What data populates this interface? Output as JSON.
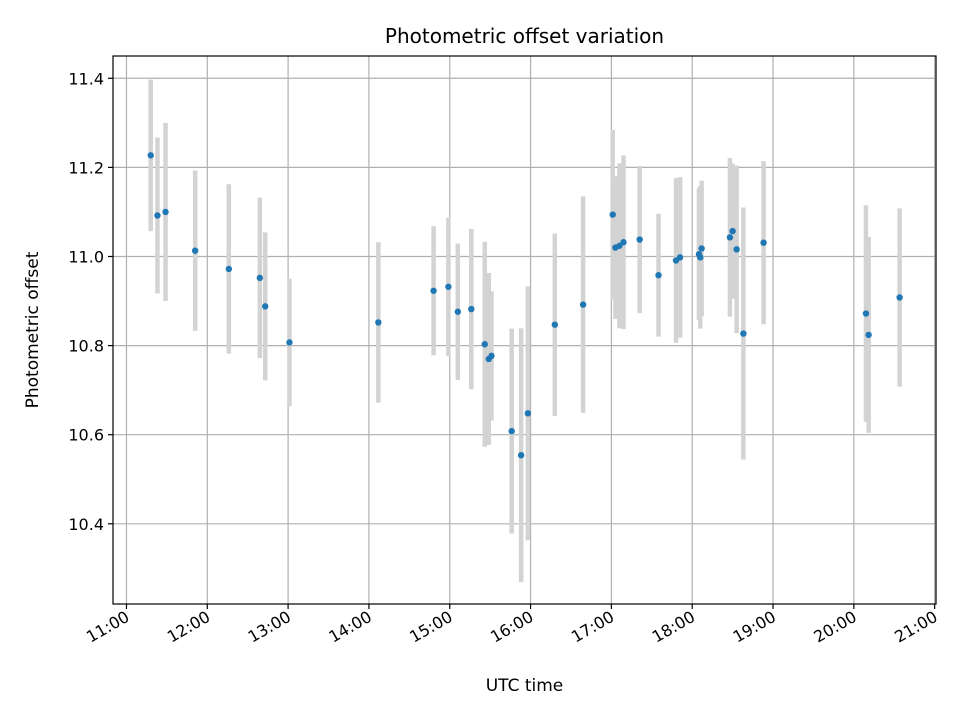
{
  "chart_data": {
    "type": "scatter",
    "title": "Photometric offset variation",
    "xlabel": "UTC time",
    "ylabel": "Photometric offset",
    "x_unit": "hours UTC",
    "xlim": [
      "10:50",
      "21:01"
    ],
    "ylim": [
      10.22,
      11.45
    ],
    "x_ticks": [
      "11:00",
      "12:00",
      "13:00",
      "14:00",
      "15:00",
      "16:00",
      "17:00",
      "18:00",
      "19:00",
      "20:00",
      "21:00"
    ],
    "y_ticks": [
      "10.4",
      "10.6",
      "10.8",
      "11.0",
      "11.2",
      "11.4"
    ],
    "grid": true,
    "colors": {
      "point": "#1f77b4",
      "errorbar": "#d3d3d3",
      "grid": "#b0b0b0",
      "axes": "#000000"
    },
    "points": [
      {
        "x": "11:18",
        "y": 11.227,
        "err": 0.17
      },
      {
        "x": "11:23",
        "y": 11.092,
        "err": 0.175
      },
      {
        "x": "11:29",
        "y": 11.1,
        "err": 0.2
      },
      {
        "x": "11:51",
        "y": 11.013,
        "err": 0.18
      },
      {
        "x": "12:16",
        "y": 10.972,
        "err": 0.19
      },
      {
        "x": "12:39",
        "y": 10.952,
        "err": 0.18
      },
      {
        "x": "12:43",
        "y": 10.888,
        "err": 0.166
      },
      {
        "x": "13:01",
        "y": 10.807,
        "err": 0.143
      },
      {
        "x": "14:07",
        "y": 10.852,
        "err": 0.18
      },
      {
        "x": "14:48",
        "y": 10.923,
        "err": 0.145
      },
      {
        "x": "14:59",
        "y": 10.932,
        "err": 0.155
      },
      {
        "x": "15:06",
        "y": 10.876,
        "err": 0.153
      },
      {
        "x": "15:16",
        "y": 10.882,
        "err": 0.18
      },
      {
        "x": "15:26",
        "y": 10.803,
        "err": 0.23
      },
      {
        "x": "15:29",
        "y": 10.77,
        "err": 0.193
      },
      {
        "x": "15:31",
        "y": 10.777,
        "err": 0.145
      },
      {
        "x": "15:46",
        "y": 10.608,
        "err": 0.23
      },
      {
        "x": "15:53",
        "y": 10.554,
        "err": 0.285
      },
      {
        "x": "15:58",
        "y": 10.648,
        "err": 0.285
      },
      {
        "x": "16:18",
        "y": 10.847,
        "err": 0.205
      },
      {
        "x": "16:39",
        "y": 10.892,
        "err": 0.243
      },
      {
        "x": "17:01",
        "y": 11.094,
        "err": 0.19
      },
      {
        "x": "17:03",
        "y": 11.02,
        "err": 0.16
      },
      {
        "x": "17:06",
        "y": 11.024,
        "err": 0.185
      },
      {
        "x": "17:09",
        "y": 11.032,
        "err": 0.195
      },
      {
        "x": "17:21",
        "y": 11.038,
        "err": 0.165
      },
      {
        "x": "17:35",
        "y": 10.958,
        "err": 0.138
      },
      {
        "x": "17:48",
        "y": 10.991,
        "err": 0.185
      },
      {
        "x": "17:51",
        "y": 10.998,
        "err": 0.18
      },
      {
        "x": "18:05",
        "y": 11.005,
        "err": 0.148
      },
      {
        "x": "18:06",
        "y": 10.998,
        "err": 0.16
      },
      {
        "x": "18:07",
        "y": 11.018,
        "err": 0.152
      },
      {
        "x": "18:28",
        "y": 11.043,
        "err": 0.178
      },
      {
        "x": "18:30",
        "y": 11.057,
        "err": 0.152
      },
      {
        "x": "18:33",
        "y": 11.016,
        "err": 0.188
      },
      {
        "x": "18:38",
        "y": 10.827,
        "err": 0.283
      },
      {
        "x": "18:53",
        "y": 11.031,
        "err": 0.183
      },
      {
        "x": "20:09",
        "y": 10.872,
        "err": 0.243
      },
      {
        "x": "20:11",
        "y": 10.824,
        "err": 0.22
      },
      {
        "x": "20:34",
        "y": 10.908,
        "err": 0.2
      }
    ]
  }
}
